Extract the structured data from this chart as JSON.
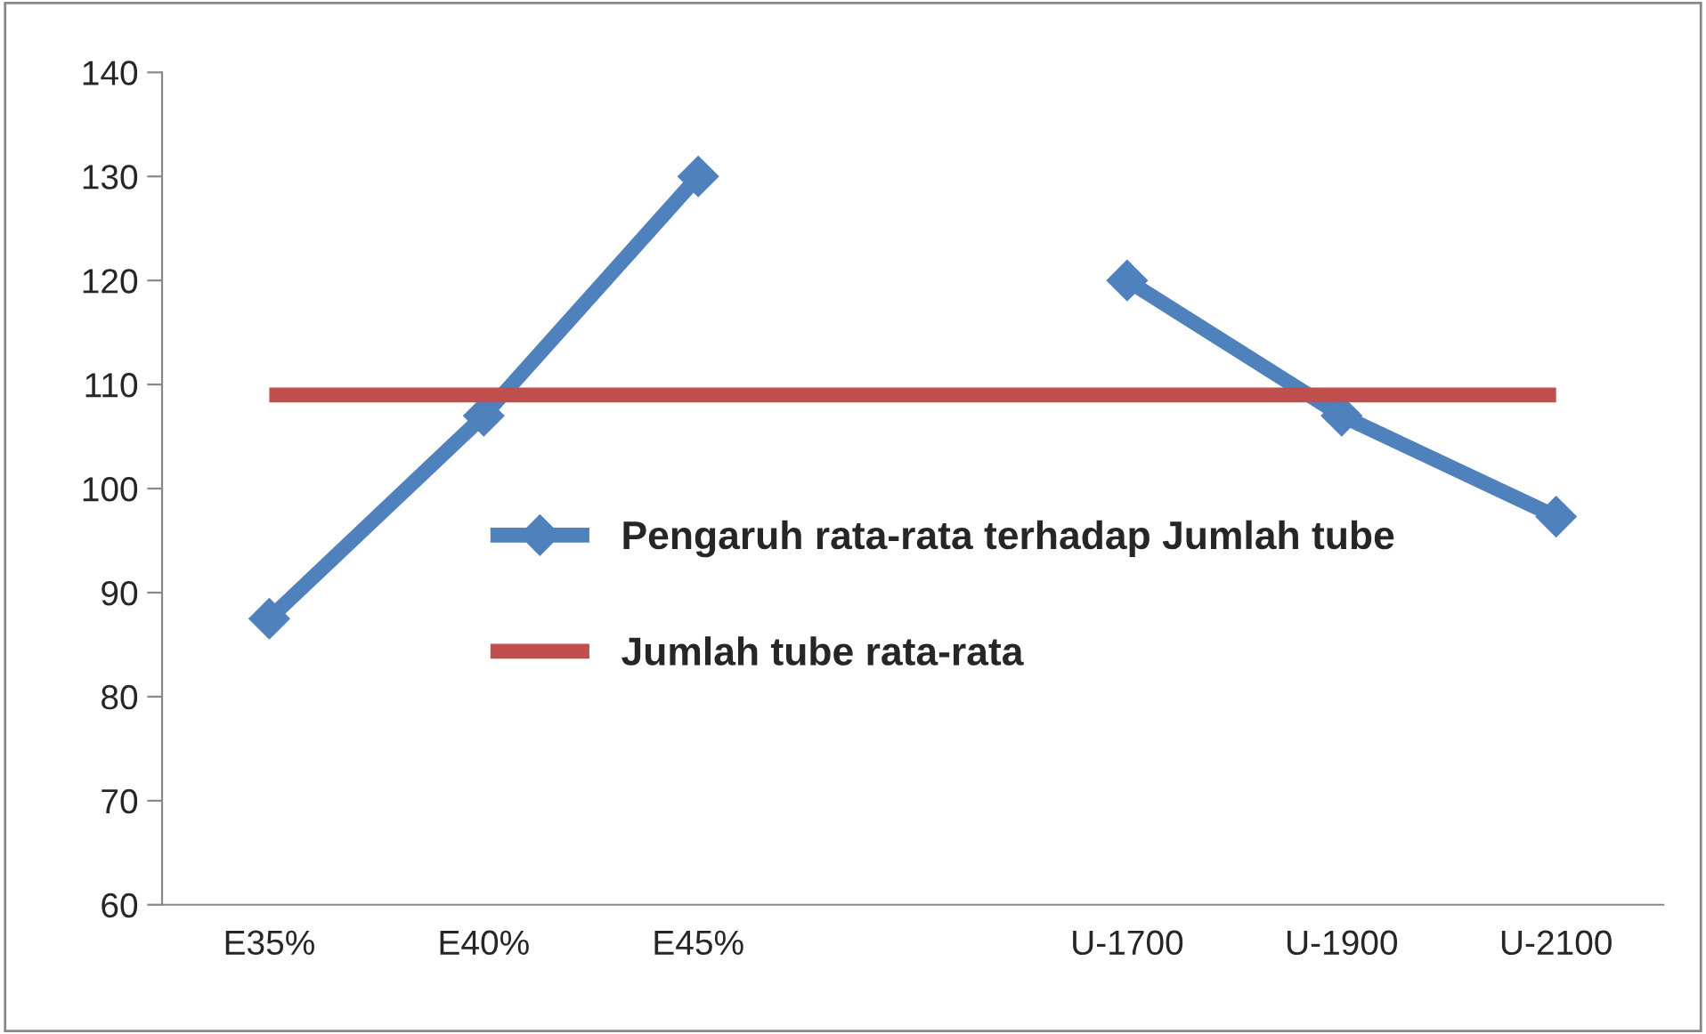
{
  "chart_data": {
    "type": "line",
    "categories": [
      "E35%",
      "E40%",
      "E45%",
      null,
      "U-1700",
      "U-1900",
      "U-2100"
    ],
    "series": [
      {
        "name": "Pengaruh rata-rata terhadap Jumlah tube",
        "color": "#4f81bd",
        "marker": "diamond",
        "values": [
          87.5,
          107,
          130,
          null,
          120,
          107,
          97.3
        ]
      },
      {
        "name": "Jumlah tube rata-rata",
        "color": "#c0504d",
        "marker": "none",
        "values": [
          109,
          109,
          109,
          109,
          109,
          109,
          109
        ]
      }
    ],
    "ylim": [
      60,
      140
    ],
    "yticks": [
      60,
      70,
      80,
      90,
      100,
      110,
      120,
      130,
      140
    ],
    "grid": false,
    "legend": "center"
  }
}
